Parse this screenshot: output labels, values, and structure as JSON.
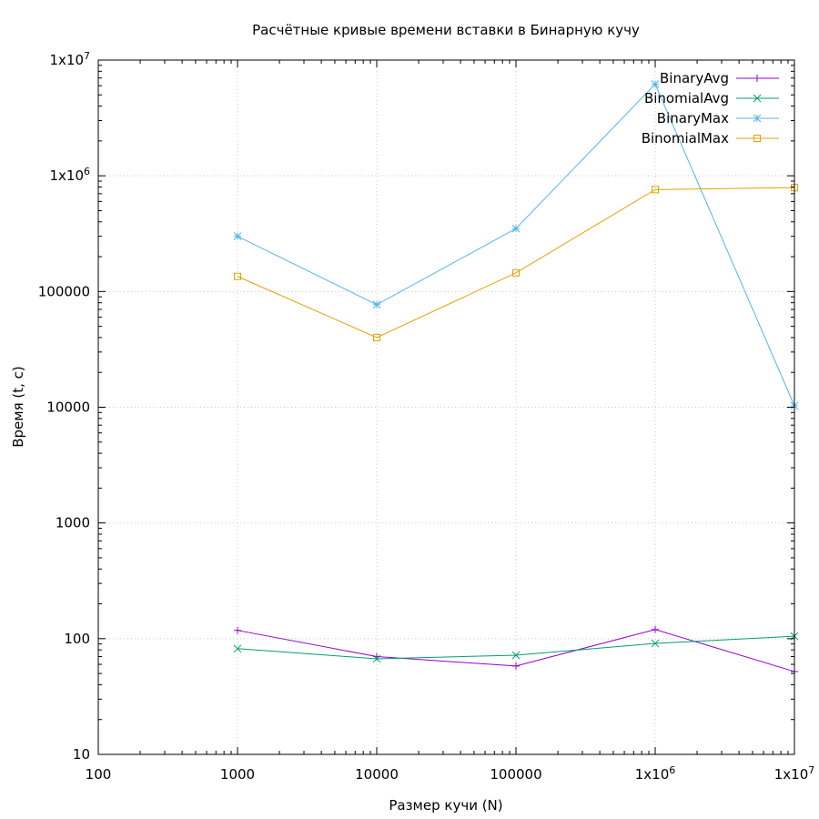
{
  "chart_data": {
    "type": "line",
    "title": "Расчётные кривые времени вставки в Бинарную кучу",
    "xlabel": "Размер кучи (N)",
    "ylabel": "Время (t, с)",
    "x_scale": "log",
    "y_scale": "log",
    "xlim": [
      100,
      10000000
    ],
    "ylim": [
      10,
      10000000
    ],
    "grid": true,
    "legend_position": "top-right",
    "x_ticks": [
      {
        "value": 100,
        "label": "100"
      },
      {
        "value": 1000,
        "label": "1000"
      },
      {
        "value": 10000,
        "label": "10000"
      },
      {
        "value": 100000,
        "label": "100000"
      },
      {
        "value": 1000000,
        "label": "1x10",
        "sup": "6"
      },
      {
        "value": 10000000,
        "label": "1x10",
        "sup": "7"
      }
    ],
    "y_ticks": [
      {
        "value": 10,
        "label": "10"
      },
      {
        "value": 100,
        "label": "100"
      },
      {
        "value": 1000,
        "label": "1000"
      },
      {
        "value": 10000,
        "label": "10000"
      },
      {
        "value": 100000,
        "label": "100000"
      },
      {
        "value": 1000000,
        "label": "1x10",
        "sup": "6"
      },
      {
        "value": 10000000,
        "label": "1x10",
        "sup": "7"
      }
    ],
    "x": [
      1000,
      10000,
      100000,
      1000000,
      10000000
    ],
    "series": [
      {
        "name": "BinaryAvg",
        "color": "#9400d3",
        "marker": "plus",
        "values": [
          118,
          70,
          58,
          120,
          52
        ]
      },
      {
        "name": "BinomialAvg",
        "color": "#009e73",
        "marker": "cross",
        "values": [
          82,
          67,
          72,
          91,
          105
        ]
      },
      {
        "name": "BinaryMax",
        "color": "#56b4e9",
        "marker": "star",
        "values": [
          300000,
          77000,
          350000,
          6200000,
          10300
        ]
      },
      {
        "name": "BinomialMax",
        "color": "#e69f00",
        "marker": "square",
        "values": [
          135000,
          40000,
          145000,
          760000,
          790000
        ]
      }
    ]
  }
}
